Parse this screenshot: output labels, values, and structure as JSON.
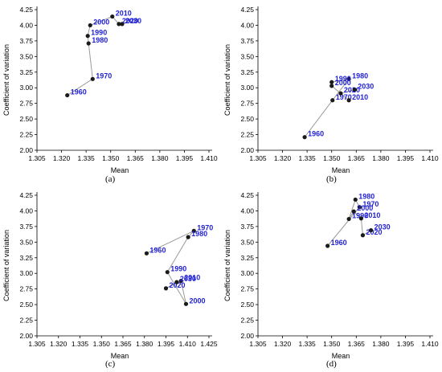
{
  "chart_data": [
    {
      "type": "scatter",
      "panel_caption": "(a)",
      "xlabel": "Mean",
      "ylabel": "Coefficient of variation",
      "xlim": [
        1.305,
        1.41
      ],
      "ylim": [
        2.0,
        4.25
      ],
      "xticks": [
        "1.305",
        "1.320",
        "1.335",
        "1.350",
        "1.365",
        "1.380",
        "1.395",
        "1.410"
      ],
      "yticks": [
        "2.00",
        "2.25",
        "2.50",
        "2.75",
        "3.00",
        "3.25",
        "3.50",
        "3.75",
        "4.00",
        "4.25"
      ],
      "points": [
        {
          "label": "1960",
          "x": 1.3235,
          "y": 2.88
        },
        {
          "label": "1970",
          "x": 1.339,
          "y": 3.14
        },
        {
          "label": "1980",
          "x": 1.3365,
          "y": 3.71
        },
        {
          "label": "1990",
          "x": 1.336,
          "y": 3.83
        },
        {
          "label": "2000",
          "x": 1.3375,
          "y": 4.0
        },
        {
          "label": "2010",
          "x": 1.351,
          "y": 4.14
        },
        {
          "label": "2020",
          "x": 1.355,
          "y": 4.02
        },
        {
          "label": "2030",
          "x": 1.357,
          "y": 4.02
        }
      ]
    },
    {
      "type": "scatter",
      "panel_caption": "(b)",
      "xlabel": "Mean",
      "ylabel": "Coefficient of variation",
      "xlim": [
        1.305,
        1.41
      ],
      "ylim": [
        2.0,
        4.25
      ],
      "xticks": [
        "1.305",
        "1.320",
        "1.335",
        "1.350",
        "1.365",
        "1.380",
        "1.395",
        "1.410"
      ],
      "yticks": [
        "2.00",
        "2.25",
        "2.50",
        "2.75",
        "3.00",
        "3.25",
        "3.50",
        "3.75",
        "4.00",
        "4.25"
      ],
      "points": [
        {
          "label": "1960",
          "x": 1.3335,
          "y": 2.21
        },
        {
          "label": "1970",
          "x": 1.3505,
          "y": 2.8
        },
        {
          "label": "1980",
          "x": 1.3605,
          "y": 3.14
        },
        {
          "label": "1990",
          "x": 1.35,
          "y": 3.09
        },
        {
          "label": "2000",
          "x": 1.35,
          "y": 3.03
        },
        {
          "label": "2010",
          "x": 1.3605,
          "y": 2.8
        },
        {
          "label": "2020",
          "x": 1.3555,
          "y": 2.91
        },
        {
          "label": "2030",
          "x": 1.364,
          "y": 2.97
        }
      ]
    },
    {
      "type": "scatter",
      "panel_caption": "(c)",
      "xlabel": "Mean",
      "ylabel": "Coefficient of variation",
      "xlim": [
        1.305,
        1.425
      ],
      "ylim": [
        2.0,
        4.25
      ],
      "xticks": [
        "1.305",
        "1.320",
        "1.335",
        "1.350",
        "1.365",
        "1.380",
        "1.395",
        "1.410",
        "1.425"
      ],
      "yticks": [
        "2.00",
        "2.25",
        "2.50",
        "2.75",
        "3.00",
        "3.25",
        "3.50",
        "3.75",
        "4.00",
        "4.25"
      ],
      "points": [
        {
          "label": "1960",
          "x": 1.3815,
          "y": 3.32
        },
        {
          "label": "1970",
          "x": 1.4145,
          "y": 3.68
        },
        {
          "label": "1980",
          "x": 1.4105,
          "y": 3.58
        },
        {
          "label": "1990",
          "x": 1.396,
          "y": 3.02
        },
        {
          "label": "2000",
          "x": 1.409,
          "y": 2.51
        },
        {
          "label": "2010",
          "x": 1.4055,
          "y": 2.88
        },
        {
          "label": "2020",
          "x": 1.395,
          "y": 2.76
        },
        {
          "label": "2030",
          "x": 1.4025,
          "y": 2.86
        }
      ]
    },
    {
      "type": "scatter",
      "panel_caption": "(d)",
      "xlabel": "Mean",
      "ylabel": "Coefficient of variation",
      "xlim": [
        1.305,
        1.41
      ],
      "ylim": [
        2.0,
        4.25
      ],
      "xticks": [
        "1.305",
        "1.320",
        "1.335",
        "1.350",
        "1.365",
        "1.380",
        "1.395",
        "1.410"
      ],
      "yticks": [
        "2.00",
        "2.25",
        "2.50",
        "2.75",
        "3.00",
        "3.25",
        "3.50",
        "3.75",
        "4.00",
        "4.25"
      ],
      "points": [
        {
          "label": "1960",
          "x": 1.3475,
          "y": 3.44
        },
        {
          "label": "1970",
          "x": 1.367,
          "y": 4.06
        },
        {
          "label": "1980",
          "x": 1.3645,
          "y": 4.18
        },
        {
          "label": "1990",
          "x": 1.3605,
          "y": 3.87
        },
        {
          "label": "2000",
          "x": 1.3635,
          "y": 3.99
        },
        {
          "label": "2010",
          "x": 1.368,
          "y": 3.88
        },
        {
          "label": "2020",
          "x": 1.369,
          "y": 3.61
        },
        {
          "label": "2030",
          "x": 1.374,
          "y": 3.69
        }
      ]
    }
  ]
}
